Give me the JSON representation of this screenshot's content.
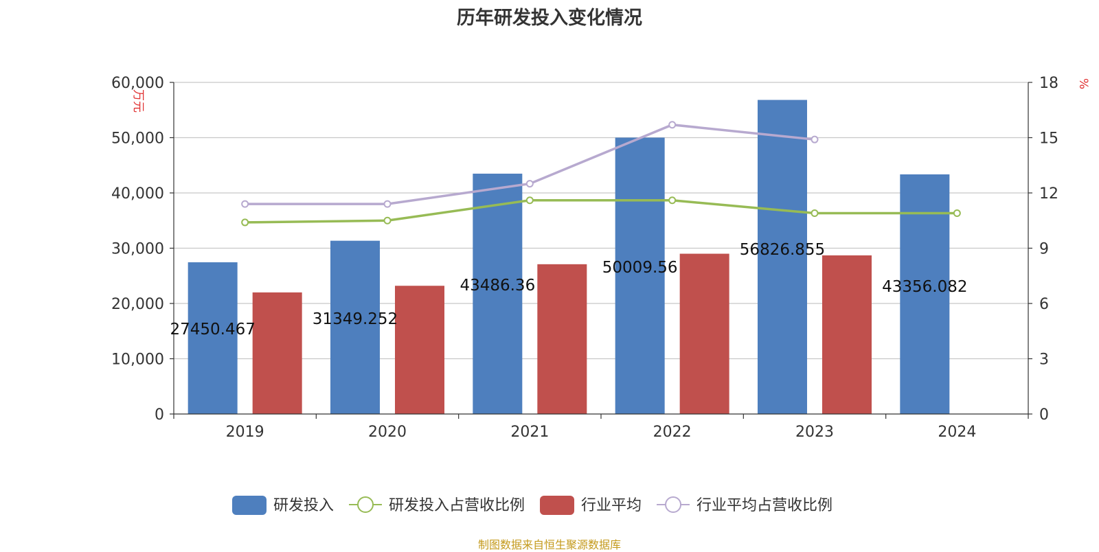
{
  "title": "历年研发投入变化情况",
  "source": "制图数据来自恒生聚源数据库",
  "chart_data": {
    "type": "bar",
    "categories": [
      "2019",
      "2020",
      "2021",
      "2022",
      "2023",
      "2024"
    ],
    "series": [
      {
        "name": "研发投入",
        "kind": "bar",
        "axis": "left",
        "color": "#4e7fbe",
        "values": [
          27450.467,
          31349.252,
          43486.36,
          50009.56,
          56826.855,
          43356.082
        ],
        "labels": [
          "27450.467",
          "31349.252",
          "43486.36",
          "50009.56",
          "56826.855",
          "43356.082"
        ]
      },
      {
        "name": "研发投入占营收比例",
        "kind": "line",
        "axis": "right",
        "color": "#97bb55",
        "values": [
          10.4,
          10.5,
          11.6,
          11.6,
          10.9,
          10.9
        ]
      },
      {
        "name": "行业平均",
        "kind": "bar",
        "axis": "left",
        "color": "#c0504d",
        "values": [
          22000,
          23200,
          27100,
          29000,
          28700,
          null
        ]
      },
      {
        "name": "行业平均占营收比例",
        "kind": "line",
        "axis": "right",
        "color": "#b7a9cf",
        "values": [
          11.4,
          11.4,
          12.5,
          15.7,
          14.9,
          null
        ]
      }
    ],
    "y_left": {
      "label": "万元",
      "min": 0,
      "max": 60000,
      "ticks": [
        "0",
        "10,000",
        "20,000",
        "30,000",
        "40,000",
        "50,000",
        "60,000"
      ]
    },
    "y_right": {
      "label": "%",
      "min": 0,
      "max": 18,
      "ticks": [
        "0",
        "3",
        "6",
        "9",
        "12",
        "15",
        "18"
      ]
    },
    "grid": true,
    "legend_position": "bottom"
  }
}
